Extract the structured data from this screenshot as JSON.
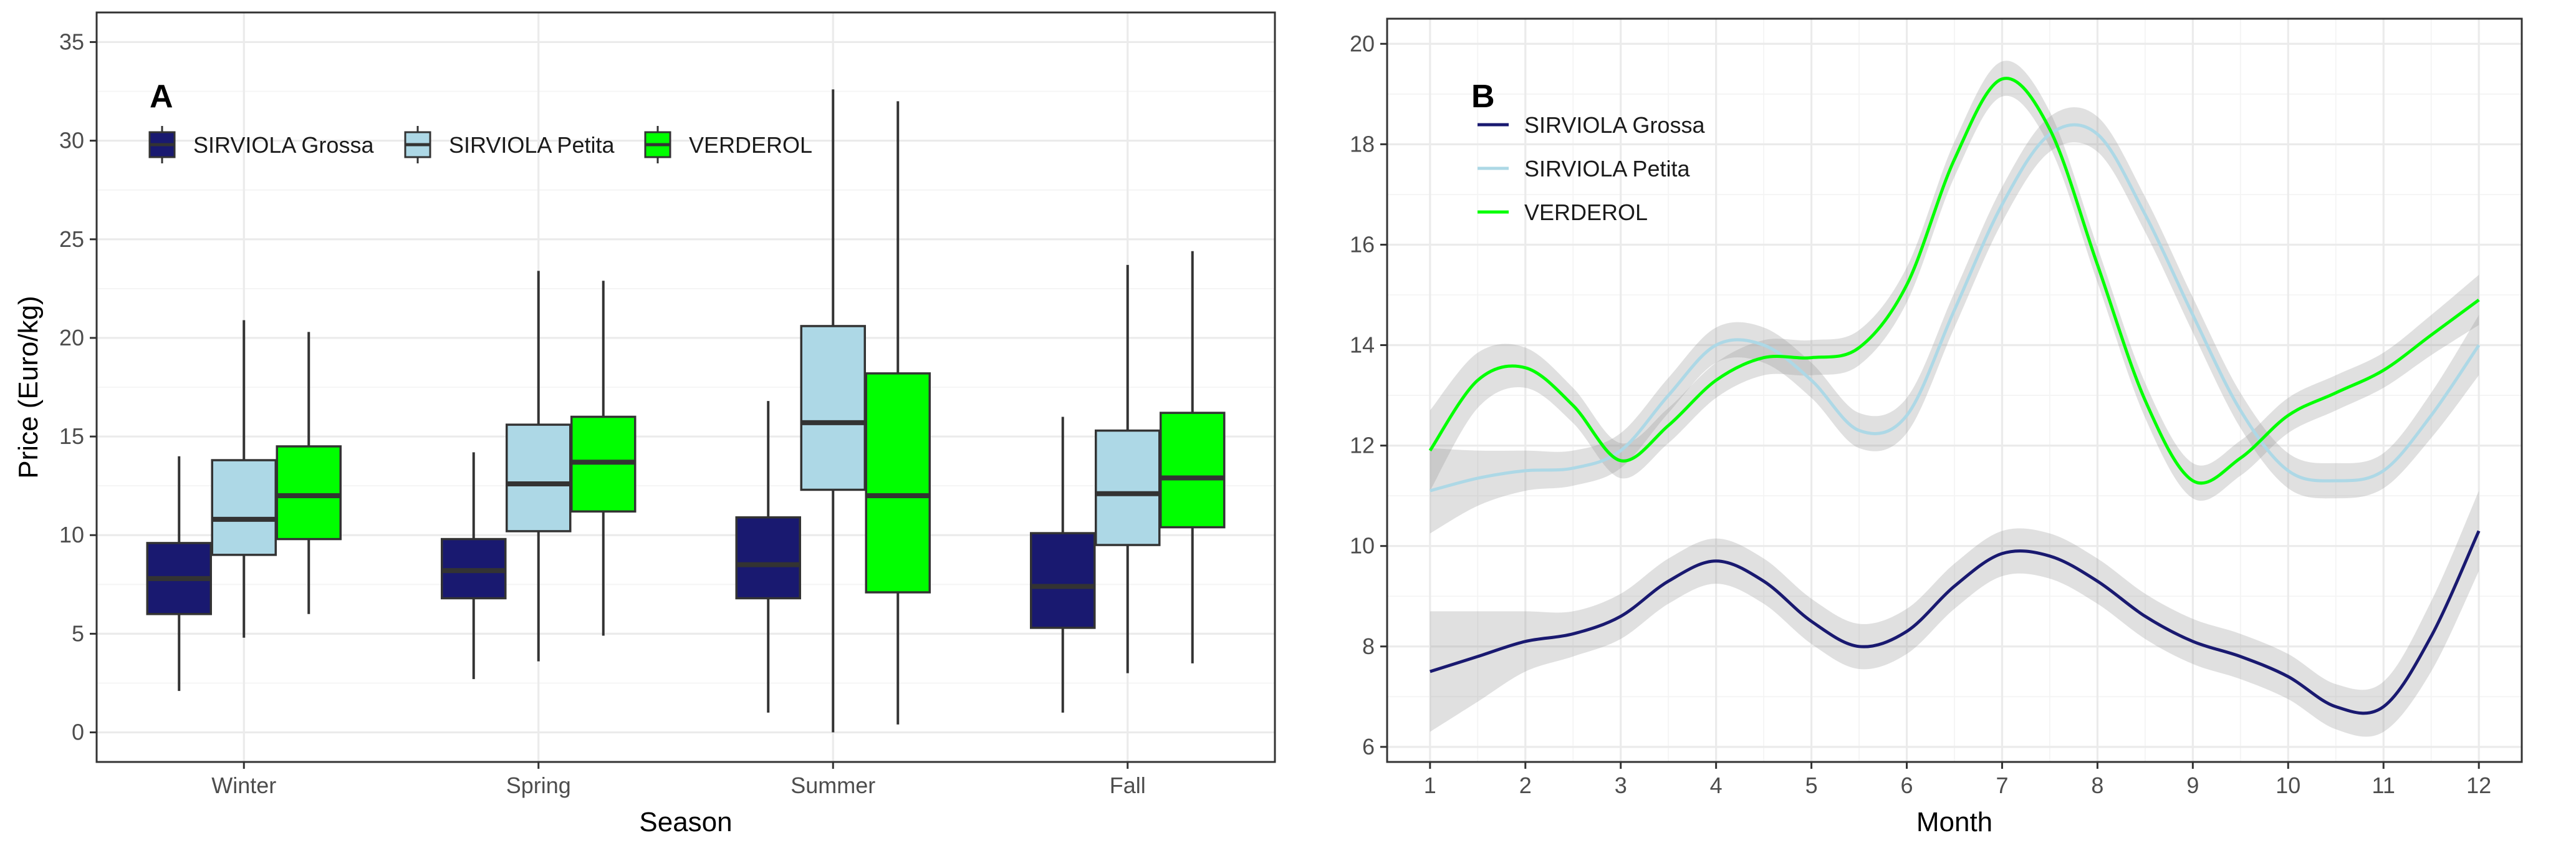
{
  "chart_data": [
    {
      "type": "box",
      "panel_label": "A",
      "title": "",
      "xlabel": "Season",
      "ylabel": "Price (Euro/kg)",
      "ylim": [
        -1.5,
        36.5
      ],
      "y_ticks": [
        0,
        5,
        10,
        15,
        20,
        25,
        30,
        35
      ],
      "categories": [
        "Winter",
        "Spring",
        "Summer",
        "Fall"
      ],
      "legend_position": "top-left",
      "grid": true,
      "series": [
        {
          "name": "SIRVIOLA Grossa",
          "color": "#191970",
          "boxes": [
            {
              "min": 2.1,
              "q1": 6.0,
              "median": 7.8,
              "q3": 9.6,
              "max": 14.0
            },
            {
              "min": 2.7,
              "q1": 6.8,
              "median": 8.2,
              "q3": 9.8,
              "max": 14.2
            },
            {
              "min": 1.0,
              "q1": 6.8,
              "median": 8.5,
              "q3": 10.9,
              "max": 16.8
            },
            {
              "min": 1.0,
              "q1": 5.3,
              "median": 7.4,
              "q3": 10.1,
              "max": 16.0
            }
          ]
        },
        {
          "name": "SIRVIOLA Petita",
          "color": "#ADD8E6",
          "boxes": [
            {
              "min": 4.8,
              "q1": 9.0,
              "median": 10.8,
              "q3": 13.8,
              "max": 20.9
            },
            {
              "min": 3.6,
              "q1": 10.2,
              "median": 12.6,
              "q3": 15.6,
              "max": 23.4
            },
            {
              "min": 0.0,
              "q1": 12.3,
              "median": 15.7,
              "q3": 20.6,
              "max": 32.6
            },
            {
              "min": 3.0,
              "q1": 9.5,
              "median": 12.1,
              "q3": 15.3,
              "max": 23.7
            }
          ]
        },
        {
          "name": "VERDEROL",
          "color": "#00FF00",
          "boxes": [
            {
              "min": 6.0,
              "q1": 9.8,
              "median": 12.0,
              "q3": 14.5,
              "max": 20.3
            },
            {
              "min": 4.9,
              "q1": 11.2,
              "median": 13.7,
              "q3": 16.0,
              "max": 22.9
            },
            {
              "min": 0.4,
              "q1": 7.1,
              "median": 12.0,
              "q3": 18.2,
              "max": 32.0
            },
            {
              "min": 3.5,
              "q1": 10.4,
              "median": 12.9,
              "q3": 16.2,
              "max": 24.4
            }
          ]
        }
      ]
    },
    {
      "type": "line",
      "panel_label": "B",
      "title": "",
      "xlabel": "Month",
      "ylabel": "",
      "xlim": [
        0.55,
        12.45
      ],
      "ylim": [
        5.7,
        20.5
      ],
      "x_ticks": [
        1,
        2,
        3,
        4,
        5,
        6,
        7,
        8,
        9,
        10,
        11,
        12
      ],
      "y_ticks": [
        6,
        8,
        10,
        12,
        14,
        16,
        18,
        20
      ],
      "legend_position": "top-left",
      "grid": true,
      "confidence_band": true,
      "x": [
        1,
        1.5,
        2,
        2.5,
        3,
        3.5,
        4,
        4.5,
        5,
        5.5,
        6,
        6.5,
        7,
        7.5,
        8,
        8.5,
        9,
        9.5,
        10,
        10.5,
        11,
        11.5,
        12
      ],
      "series": [
        {
          "name": "SIRVIOLA Grossa",
          "color": "#191970",
          "values": [
            7.5,
            7.8,
            8.1,
            8.25,
            8.6,
            9.3,
            9.7,
            9.3,
            8.5,
            8.0,
            8.3,
            9.2,
            9.85,
            9.8,
            9.3,
            8.6,
            8.1,
            7.8,
            7.4,
            6.8,
            6.8,
            8.2,
            10.3
          ],
          "band": [
            1.2,
            0.9,
            0.6,
            0.45,
            0.45,
            0.45,
            0.45,
            0.45,
            0.45,
            0.45,
            0.45,
            0.45,
            0.45,
            0.45,
            0.45,
            0.45,
            0.45,
            0.45,
            0.45,
            0.45,
            0.5,
            0.7,
            0.8
          ]
        },
        {
          "name": "SIRVIOLA Petita",
          "color": "#ADD8E6",
          "values": [
            11.1,
            11.35,
            11.5,
            11.55,
            11.9,
            13.0,
            14.0,
            14.0,
            13.3,
            12.3,
            12.6,
            14.7,
            16.8,
            18.2,
            18.2,
            16.6,
            14.6,
            12.7,
            11.5,
            11.3,
            11.5,
            12.6,
            14.0
          ],
          "band": [
            0.85,
            0.55,
            0.4,
            0.35,
            0.35,
            0.35,
            0.35,
            0.35,
            0.35,
            0.35,
            0.35,
            0.35,
            0.35,
            0.35,
            0.35,
            0.35,
            0.35,
            0.35,
            0.35,
            0.35,
            0.35,
            0.45,
            0.6
          ]
        },
        {
          "name": "VERDEROL",
          "color": "#00FF00",
          "values": [
            11.9,
            13.3,
            13.55,
            12.8,
            11.7,
            12.4,
            13.3,
            13.75,
            13.75,
            13.95,
            15.2,
            17.7,
            19.3,
            18.3,
            15.6,
            12.9,
            11.3,
            11.75,
            12.6,
            13.05,
            13.5,
            14.2,
            14.9
          ],
          "band": [
            0.8,
            0.55,
            0.4,
            0.35,
            0.35,
            0.35,
            0.35,
            0.35,
            0.35,
            0.35,
            0.35,
            0.35,
            0.35,
            0.35,
            0.35,
            0.35,
            0.35,
            0.35,
            0.35,
            0.35,
            0.35,
            0.4,
            0.5
          ]
        }
      ]
    }
  ]
}
